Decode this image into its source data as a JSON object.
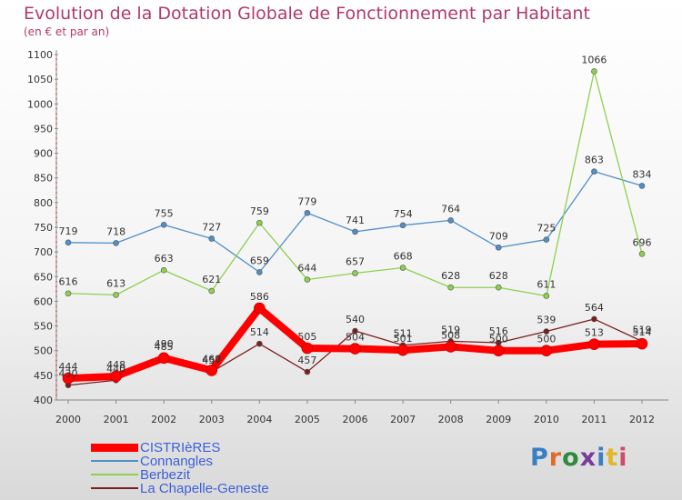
{
  "title": "Evolution de la Dotation Globale de Fonctionnement par Habitant",
  "subtitle": "(en € et par an)",
  "logo": {
    "text": "Proxiti",
    "colors": [
      "#3a7fc4",
      "#e06a2a",
      "#2d8a3e",
      "#7a3a9a",
      "#3a7fc4",
      "#e0b82a",
      "#d04a6a"
    ]
  },
  "chart_data": {
    "type": "line",
    "x": [
      "2000",
      "2001",
      "2002",
      "2003",
      "2004",
      "2005",
      "2006",
      "2007",
      "2008",
      "2009",
      "2010",
      "2011",
      "2012"
    ],
    "ylim": [
      400,
      1100
    ],
    "yticks": [
      400,
      450,
      500,
      550,
      600,
      650,
      700,
      750,
      800,
      850,
      900,
      950,
      1000,
      1050,
      1100
    ],
    "grid": false,
    "series": [
      {
        "name": "CISTRIèRES",
        "color": "#ff0000",
        "values": [
          444,
          448,
          485,
          460,
          586,
          505,
          504,
          501,
          508,
          500,
          500,
          513,
          514
        ]
      },
      {
        "name": "Connangles",
        "color": "#4f8fc8",
        "values": [
          719,
          718,
          755,
          727,
          659,
          779,
          741,
          754,
          764,
          709,
          725,
          863,
          834
        ]
      },
      {
        "name": "Berbezit",
        "color": "#8dd050",
        "values": [
          616,
          613,
          663,
          621,
          759,
          644,
          657,
          668,
          628,
          628,
          611,
          1066,
          696
        ]
      },
      {
        "name": "La Chapelle-Geneste",
        "color": "#7a1f1f",
        "values": [
          430,
          440,
          490,
          457,
          514,
          457,
          540,
          511,
          519,
          516,
          539,
          564,
          519
        ]
      }
    ]
  }
}
